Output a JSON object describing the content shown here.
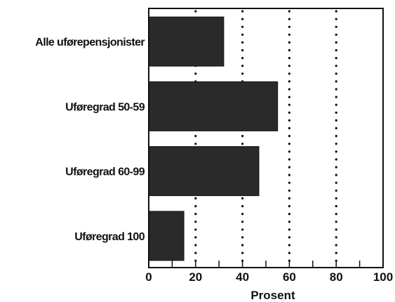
{
  "chart_data": {
    "type": "bar",
    "orientation": "horizontal",
    "categories": [
      "Alle uførepensjonister",
      "Uføregrad 50-59",
      "Uføregrad 60-99",
      "Uføregrad 100"
    ],
    "values": [
      32,
      55,
      47,
      15
    ],
    "xlabel": "Prosent",
    "xlim": [
      0,
      100
    ],
    "x_ticks": [
      0,
      20,
      40,
      60,
      80,
      100
    ],
    "grid": "vertical-dotted",
    "bar_color": "#2a2a2a",
    "gridline_color": "#111111"
  }
}
